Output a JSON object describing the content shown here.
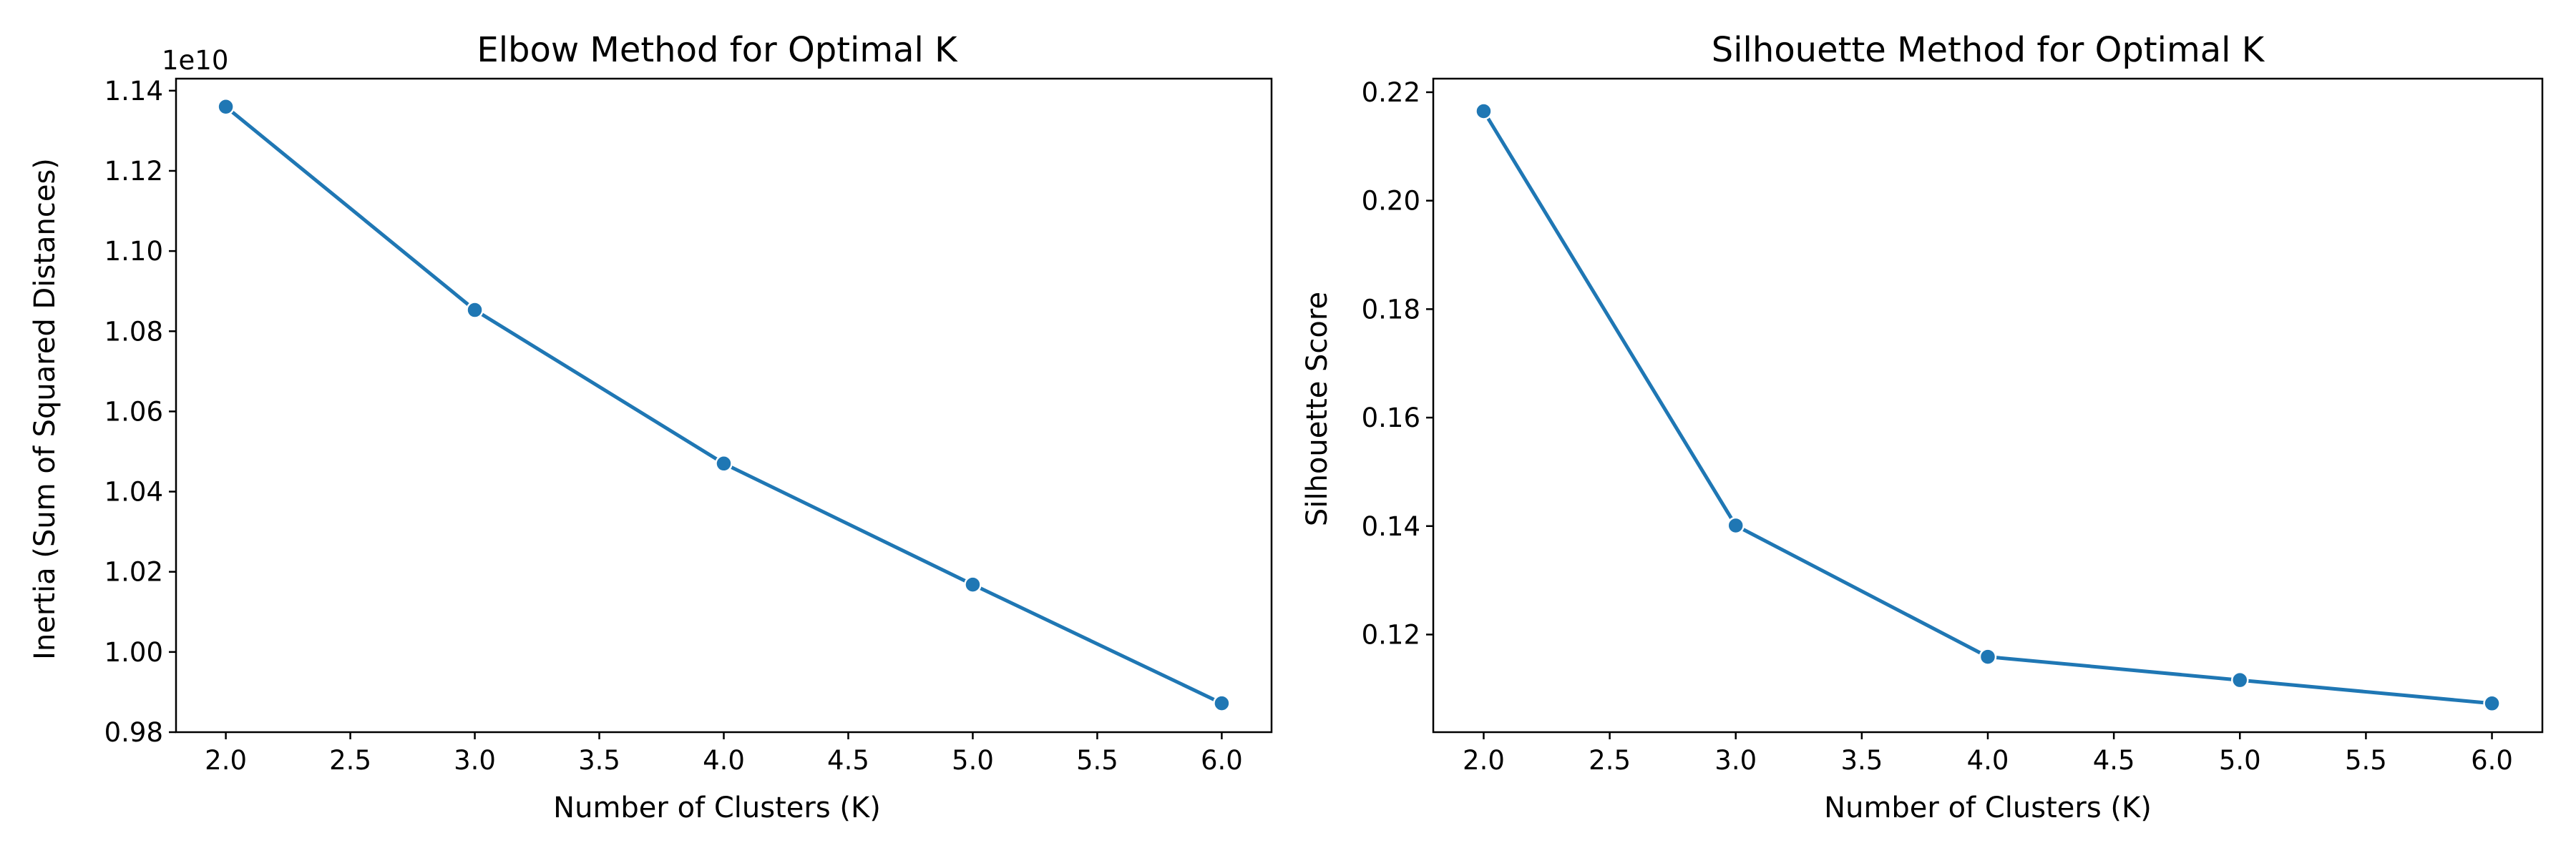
{
  "chart_data": [
    {
      "type": "line",
      "title": "Elbow Method for Optimal K",
      "xlabel": "Number of Clusters (K)",
      "ylabel": "Inertia (Sum of Squared Distances)",
      "offset_text": "1e10",
      "x_ticks": [
        "2.0",
        "2.5",
        "3.0",
        "3.5",
        "4.0",
        "4.5",
        "5.0",
        "5.5",
        "6.0"
      ],
      "y_ticks": [
        "0.98",
        "1.00",
        "1.02",
        "1.04",
        "1.06",
        "1.08",
        "1.10",
        "1.12",
        "1.14"
      ],
      "xlim": [
        1.8,
        6.2
      ],
      "ylim": [
        0.98,
        1.143
      ],
      "grid": false,
      "color": "#1f77b4",
      "marker": "circle",
      "x": [
        2,
        3,
        4,
        5,
        6
      ],
      "y": [
        1.136,
        1.0853,
        1.047,
        1.0168,
        0.9872
      ]
    },
    {
      "type": "line",
      "title": "Silhouette Method for Optimal K",
      "xlabel": "Number of Clusters (K)",
      "ylabel": "Silhouette Score",
      "x_ticks": [
        "2.0",
        "2.5",
        "3.0",
        "3.5",
        "4.0",
        "4.5",
        "5.0",
        "5.5",
        "6.0"
      ],
      "y_ticks": [
        "0.12",
        "0.14",
        "0.16",
        "0.18",
        "0.20",
        "0.22"
      ],
      "xlim": [
        1.8,
        6.2
      ],
      "ylim": [
        0.102,
        0.2225
      ],
      "grid": false,
      "color": "#1f77b4",
      "marker": "circle",
      "x": [
        2,
        3,
        4,
        5,
        6
      ],
      "y": [
        0.2165,
        0.1401,
        0.1159,
        0.1116,
        0.1073
      ]
    }
  ]
}
